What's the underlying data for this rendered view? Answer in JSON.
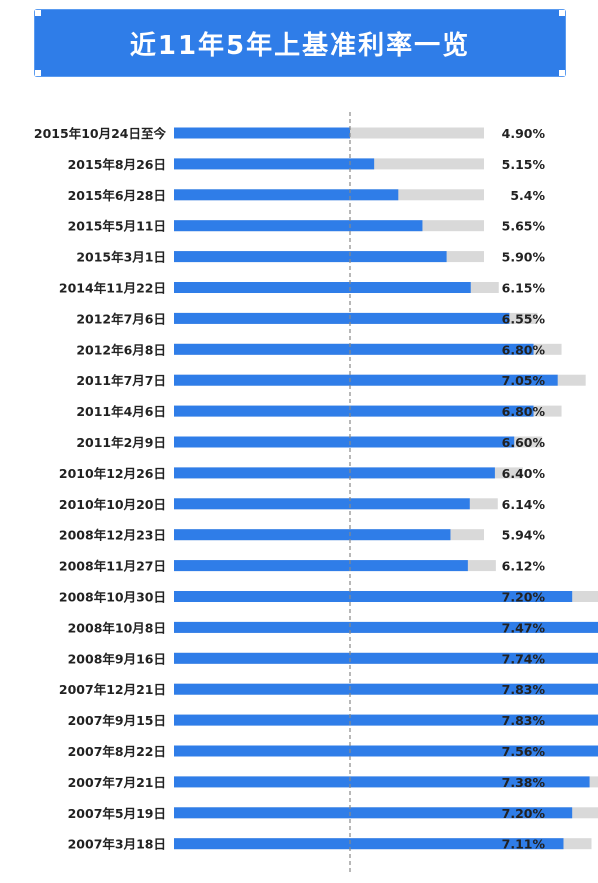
{
  "title": "近11年5年上基准利率一览",
  "colors": {
    "banner": "#2f7de8",
    "bar": "#2f7de8",
    "track": "#d9d9d9",
    "reference_line": "#888888",
    "text": "#222222"
  },
  "chart_data": {
    "type": "bar",
    "orientation": "horizontal",
    "title": "近11年5年上基准利率一览",
    "categories": [
      "2015年10月24日至今",
      "2015年8月26日",
      "2015年6月28日",
      "2015年5月11日",
      "2015年3月1日",
      "2014年11月22日",
      "2012年7月6日",
      "2012年6月8日",
      "2011年7月7日",
      "2011年4月6日",
      "2011年2月9日",
      "2010年12月26日",
      "2010年10月20日",
      "2008年12月23日",
      "2008年11月27日",
      "2008年10月30日",
      "2008年10月8日",
      "2008年9月16日",
      "2007年12月21日",
      "2007年9月15日",
      "2007年8月22日",
      "2007年7月21日",
      "2007年5月19日",
      "2007年3月18日"
    ],
    "values": [
      4.9,
      5.15,
      5.4,
      5.65,
      5.9,
      6.15,
      6.55,
      6.8,
      7.05,
      6.8,
      6.6,
      6.4,
      6.14,
      5.94,
      6.12,
      7.2,
      7.47,
      7.74,
      7.83,
      7.83,
      7.56,
      7.38,
      7.2,
      7.11
    ],
    "value_labels": [
      "4.90%",
      "5.15%",
      "5.4%",
      "5.65%",
      "5.90%",
      "6.15%",
      "6.55%",
      "6.80%",
      "7.05%",
      "6.80%",
      "6.60%",
      "6.40%",
      "6.14%",
      "5.94%",
      "6.12%",
      "7.20%",
      "7.47%",
      "7.74%",
      "7.83%",
      "7.83%",
      "7.56%",
      "7.38%",
      "7.20%",
      "7.11%"
    ],
    "reference_line": 4.9,
    "xlabel": "",
    "ylabel": "",
    "legend": "none",
    "grid": false
  }
}
